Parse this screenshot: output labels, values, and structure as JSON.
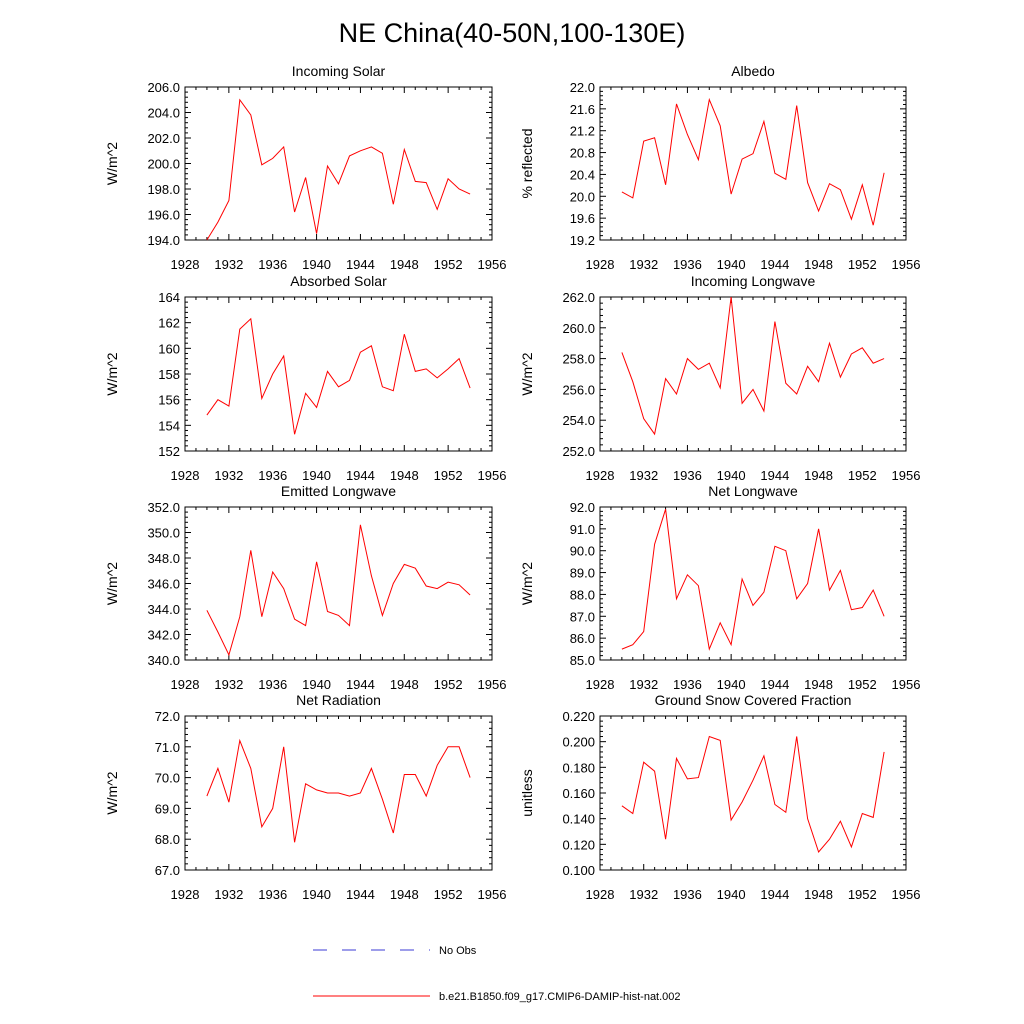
{
  "page": {
    "title": "NE China(40-50N,100-130E)"
  },
  "legend": [
    {
      "label": "No Obs",
      "color": "#3b3bd6",
      "style": "dashed"
    },
    {
      "label": "b.e21.B1850.f09_g17.CMIP6-DAMIP-hist-nat.002",
      "color": "#ff0000",
      "style": "solid"
    }
  ],
  "chart_data": [
    {
      "type": "line",
      "title": "Incoming Solar",
      "ylabel": "W/m^2",
      "xlim": [
        1928,
        1956
      ],
      "ylim": [
        194.0,
        206.0
      ],
      "x_ticks": [
        "1928",
        "1932",
        "1936",
        "1940",
        "1944",
        "1948",
        "1952",
        "1956"
      ],
      "y_ticks": [
        "194.0",
        "196.0",
        "198.0",
        "200.0",
        "202.0",
        "204.0",
        "206.0"
      ],
      "x": [
        1930,
        1931,
        1932,
        1933,
        1934,
        1935,
        1936,
        1937,
        1938,
        1939,
        1940,
        1941,
        1942,
        1943,
        1944,
        1945,
        1946,
        1947,
        1948,
        1949,
        1950,
        1951,
        1952,
        1953,
        1954
      ],
      "series": [
        {
          "values": [
            194.0,
            195.4,
            197.1,
            205.0,
            203.8,
            199.9,
            200.4,
            201.3,
            196.2,
            198.9,
            194.5,
            199.8,
            198.4,
            200.6,
            201.0,
            201.3,
            200.8,
            196.8,
            201.1,
            198.6,
            198.5,
            196.4,
            198.8,
            198.0,
            197.6
          ]
        }
      ]
    },
    {
      "type": "line",
      "title": "Albedo",
      "ylabel": "% reflected",
      "xlim": [
        1928,
        1956
      ],
      "ylim": [
        19.2,
        22.0
      ],
      "x_ticks": [
        "1928",
        "1932",
        "1936",
        "1940",
        "1944",
        "1948",
        "1952",
        "1956"
      ],
      "y_ticks": [
        "19.2",
        "19.6",
        "20.0",
        "20.4",
        "20.8",
        "21.2",
        "21.6",
        "22.0"
      ],
      "x": [
        1930,
        1931,
        1932,
        1933,
        1934,
        1935,
        1936,
        1937,
        1938,
        1939,
        1940,
        1941,
        1942,
        1943,
        1944,
        1945,
        1946,
        1947,
        1948,
        1949,
        1950,
        1951,
        1952,
        1953,
        1954
      ],
      "series": [
        {
          "values": [
            20.08,
            19.97,
            21.01,
            21.07,
            20.21,
            21.69,
            21.13,
            20.67,
            21.77,
            21.29,
            20.04,
            20.68,
            20.78,
            21.37,
            20.42,
            20.31,
            21.66,
            20.25,
            19.73,
            20.23,
            20.12,
            19.58,
            20.21,
            19.47,
            20.43
          ]
        }
      ]
    },
    {
      "type": "line",
      "title": "Absorbed Solar",
      "ylabel": "W/m^2",
      "xlim": [
        1928,
        1956
      ],
      "ylim": [
        152,
        164
      ],
      "x_ticks": [
        "1928",
        "1932",
        "1936",
        "1940",
        "1944",
        "1948",
        "1952",
        "1956"
      ],
      "y_ticks": [
        "152",
        "154",
        "156",
        "158",
        "160",
        "162",
        "164"
      ],
      "x": [
        1930,
        1931,
        1932,
        1933,
        1934,
        1935,
        1936,
        1937,
        1938,
        1939,
        1940,
        1941,
        1942,
        1943,
        1944,
        1945,
        1946,
        1947,
        1948,
        1949,
        1950,
        1951,
        1952,
        1953,
        1954
      ],
      "series": [
        {
          "values": [
            154.8,
            156.0,
            155.5,
            161.5,
            162.3,
            156.1,
            158.0,
            159.4,
            153.3,
            156.5,
            155.4,
            158.2,
            157.0,
            157.5,
            159.7,
            160.2,
            157.0,
            156.7,
            161.1,
            158.2,
            158.4,
            157.7,
            158.4,
            159.2,
            156.9
          ]
        }
      ]
    },
    {
      "type": "line",
      "title": "Incoming Longwave",
      "ylabel": "W/m^2",
      "xlim": [
        1928,
        1956
      ],
      "ylim": [
        252.0,
        262.0
      ],
      "x_ticks": [
        "1928",
        "1932",
        "1936",
        "1940",
        "1944",
        "1948",
        "1952",
        "1956"
      ],
      "y_ticks": [
        "252.0",
        "254.0",
        "256.0",
        "258.0",
        "260.0",
        "262.0"
      ],
      "x": [
        1930,
        1931,
        1932,
        1933,
        1934,
        1935,
        1936,
        1937,
        1938,
        1939,
        1940,
        1941,
        1942,
        1943,
        1944,
        1945,
        1946,
        1947,
        1948,
        1949,
        1950,
        1951,
        1952,
        1953,
        1954
      ],
      "series": [
        {
          "values": [
            258.4,
            256.5,
            254.1,
            253.1,
            256.7,
            255.7,
            258.0,
            257.3,
            257.7,
            256.1,
            262.0,
            255.1,
            256.0,
            254.6,
            260.4,
            256.4,
            255.7,
            257.5,
            256.5,
            259.0,
            256.8,
            258.3,
            258.7,
            257.7,
            258.0
          ]
        }
      ]
    },
    {
      "type": "line",
      "title": "Emitted Longwave",
      "ylabel": "W/m^2",
      "xlim": [
        1928,
        1956
      ],
      "ylim": [
        340.0,
        352.0
      ],
      "x_ticks": [
        "1928",
        "1932",
        "1936",
        "1940",
        "1944",
        "1948",
        "1952",
        "1956"
      ],
      "y_ticks": [
        "340.0",
        "342.0",
        "344.0",
        "346.0",
        "348.0",
        "350.0",
        "352.0"
      ],
      "x": [
        1930,
        1931,
        1932,
        1933,
        1934,
        1935,
        1936,
        1937,
        1938,
        1939,
        1940,
        1941,
        1942,
        1943,
        1944,
        1945,
        1946,
        1947,
        1948,
        1949,
        1950,
        1951,
        1952,
        1953,
        1954
      ],
      "series": [
        {
          "values": [
            343.9,
            342.2,
            340.4,
            343.4,
            348.6,
            343.4,
            346.9,
            345.6,
            343.2,
            342.7,
            347.7,
            343.8,
            343.5,
            342.7,
            350.6,
            346.6,
            343.5,
            346.0,
            347.5,
            347.2,
            345.8,
            345.6,
            346.1,
            345.9,
            345.1
          ]
        }
      ]
    },
    {
      "type": "line",
      "title": "Net Longwave",
      "ylabel": "W/m^2",
      "xlim": [
        1928,
        1956
      ],
      "ylim": [
        85.0,
        92.0
      ],
      "x_ticks": [
        "1928",
        "1932",
        "1936",
        "1940",
        "1944",
        "1948",
        "1952",
        "1956"
      ],
      "y_ticks": [
        "85.0",
        "86.0",
        "87.0",
        "88.0",
        "89.0",
        "90.0",
        "91.0",
        "92.0"
      ],
      "x": [
        1930,
        1931,
        1932,
        1933,
        1934,
        1935,
        1936,
        1937,
        1938,
        1939,
        1940,
        1941,
        1942,
        1943,
        1944,
        1945,
        1946,
        1947,
        1948,
        1949,
        1950,
        1951,
        1952,
        1953,
        1954
      ],
      "series": [
        {
          "values": [
            85.5,
            85.7,
            86.3,
            90.3,
            91.9,
            87.8,
            88.9,
            88.4,
            85.5,
            86.7,
            85.7,
            88.7,
            87.5,
            88.1,
            90.2,
            90.0,
            87.8,
            88.5,
            91.0,
            88.2,
            89.1,
            87.3,
            87.4,
            88.2,
            87.0
          ]
        }
      ]
    },
    {
      "type": "line",
      "title": "Net Radiation",
      "ylabel": "W/m^2",
      "xlim": [
        1928,
        1956
      ],
      "ylim": [
        67.0,
        72.0
      ],
      "x_ticks": [
        "1928",
        "1932",
        "1936",
        "1940",
        "1944",
        "1948",
        "1952",
        "1956"
      ],
      "y_ticks": [
        "67.0",
        "68.0",
        "69.0",
        "70.0",
        "71.0",
        "72.0"
      ],
      "x": [
        1930,
        1931,
        1932,
        1933,
        1934,
        1935,
        1936,
        1937,
        1938,
        1939,
        1940,
        1941,
        1942,
        1943,
        1944,
        1945,
        1946,
        1947,
        1948,
        1949,
        1950,
        1951,
        1952,
        1953,
        1954
      ],
      "series": [
        {
          "values": [
            69.4,
            70.3,
            69.2,
            71.2,
            70.3,
            68.4,
            69.0,
            71.0,
            67.9,
            69.8,
            69.6,
            69.5,
            69.5,
            69.4,
            69.5,
            70.3,
            69.3,
            68.2,
            70.1,
            70.1,
            69.4,
            70.4,
            71.0,
            71.0,
            70.0
          ]
        }
      ]
    },
    {
      "type": "line",
      "title": "Ground Snow Covered Fraction",
      "ylabel": "unitless",
      "xlim": [
        1928,
        1956
      ],
      "ylim": [
        0.1,
        0.22
      ],
      "x_ticks": [
        "1928",
        "1932",
        "1936",
        "1940",
        "1944",
        "1948",
        "1952",
        "1956"
      ],
      "y_ticks": [
        "0.100",
        "0.120",
        "0.140",
        "0.160",
        "0.180",
        "0.200",
        "0.220"
      ],
      "x": [
        1930,
        1931,
        1932,
        1933,
        1934,
        1935,
        1936,
        1937,
        1938,
        1939,
        1940,
        1941,
        1942,
        1943,
        1944,
        1945,
        1946,
        1947,
        1948,
        1949,
        1950,
        1951,
        1952,
        1953,
        1954
      ],
      "series": [
        {
          "values": [
            0.15,
            0.144,
            0.184,
            0.177,
            0.124,
            0.187,
            0.171,
            0.172,
            0.204,
            0.201,
            0.139,
            0.153,
            0.17,
            0.189,
            0.151,
            0.145,
            0.204,
            0.14,
            0.114,
            0.124,
            0.138,
            0.118,
            0.144,
            0.141,
            0.192
          ]
        }
      ]
    }
  ]
}
